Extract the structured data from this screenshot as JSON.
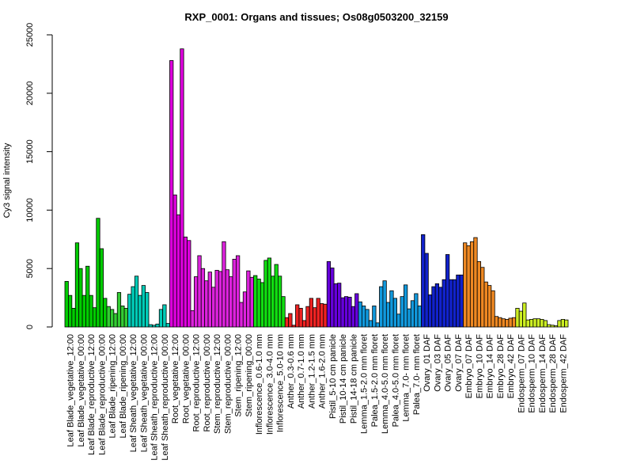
{
  "chart_data": {
    "type": "bar",
    "title": "RXP_0001: Organs and tissues; Os08g0503200_32159",
    "xlabel": "",
    "ylabel": "Cy3 signal intensity",
    "ylim": [
      0,
      25000
    ],
    "yticks": [
      0,
      5000,
      10000,
      15000,
      20000,
      25000
    ],
    "grid": false,
    "legend": "none",
    "categories": [
      "Leaf Blade_vegetative_12:00",
      "Leaf Blade_vegetative_00:00",
      "Leaf Blade_reproductive_12:00",
      "Leaf Blade_reproductive_00:00",
      "Leaf Blade_ripening_12:00",
      "Leaf Blade_ripening_00:00",
      "Leaf Sheath_vegetative_12:00",
      "Leaf Sheath_vegetative_00:00",
      "Leaf Sheath_reproductive_12:00",
      "Leaf Sheath_reproductive_00:00",
      "Root_vegetative_12:00",
      "Root_vegetative_00:00",
      "Root_reproductive_12:00",
      "Root_reproductive_00:00",
      "Stem_reproductive_12:00",
      "Stem_reproductive_00:00",
      "Stem_ripening_12:00",
      "Stem_ripening_00:00",
      "Inflorescence_0.6-1.0 mm",
      "Inflorescence_3.0-4.0 mm",
      "Inflorescence_5.0-10 mm",
      "Anther_0.3-0.6 mm",
      "Anther_0.7-1.0 mm",
      "Anther_1.2-1.5 mm",
      "Anther_1.6-2.0 mm",
      "Pistil_5-10 cm panicle",
      "Pistil_10-14 cm panicle",
      "Pistil_14-18 cm panicle",
      "Lemma_1.5-2.0 mm floret",
      "Palea_1.5-2.0 mm floret",
      "Lemma_4.0-5.0 mm floret",
      "Palea_4.0-5.0 mm floret",
      "Lemma_7.0- mm floret",
      "Palea_7.0- mm floret",
      "Ovary_01 DAF",
      "Ovary_03 DAF",
      "Ovary_05 DAF",
      "Ovary_07 DAF",
      "Embryo_07 DAF",
      "Embryo_10 DAF",
      "Embryo_14 DAF",
      "Embryo_28 DAF",
      "Embryo_42 DAF",
      "Endosperm_07 DAF",
      "Endosperm_10 DAF",
      "Endosperm_14 DAF",
      "Endosperm_28 DAF",
      "Endosperm_42 DAF"
    ],
    "groups": [
      {
        "color": "#00cc00",
        "values": [
          3900,
          2700,
          1600
        ]
      },
      {
        "color": "#00cc00",
        "values": [
          7200,
          5000,
          2700
        ]
      },
      {
        "color": "#00cc00",
        "values": [
          5200,
          2700,
          1650
        ]
      },
      {
        "color": "#00cc00",
        "values": [
          9300,
          6700,
          2450
        ]
      },
      {
        "color": "#33cc33",
        "values": [
          1750,
          1500,
          1150
        ]
      },
      {
        "color": "#33cc33",
        "values": [
          2950,
          1800,
          1600
        ]
      },
      {
        "color": "#00ccb8",
        "values": [
          2800,
          3450,
          4350
        ]
      },
      {
        "color": "#00ccb8",
        "values": [
          2700,
          3550,
          2950
        ]
      },
      {
        "color": "#00ccb8",
        "values": [
          200,
          150,
          250
        ]
      },
      {
        "color": "#00ccb8",
        "values": [
          1500,
          1900,
          300
        ]
      },
      {
        "color": "#dd00dd",
        "values": [
          22800,
          11300,
          9600
        ]
      },
      {
        "color": "#dd00dd",
        "values": [
          23800,
          7700,
          7400
        ]
      },
      {
        "color": "#dd22dd",
        "values": [
          1400,
          4300,
          6100
        ]
      },
      {
        "color": "#dd22dd",
        "values": [
          5000,
          3950,
          4700
        ]
      },
      {
        "color": "#dd22dd",
        "values": [
          3400,
          4850,
          4750
        ]
      },
      {
        "color": "#dd22dd",
        "values": [
          7300,
          4900,
          4300
        ]
      },
      {
        "color": "#dd22dd",
        "values": [
          5800,
          6100,
          2100
        ]
      },
      {
        "color": "#dd22dd",
        "values": [
          3000,
          4800,
          4250
        ]
      },
      {
        "color": "#11dd11",
        "values": [
          4400,
          4100,
          3800
        ]
      },
      {
        "color": "#11dd11",
        "values": [
          5700,
          5900,
          4350
        ]
      },
      {
        "color": "#11dd11",
        "values": [
          5350,
          4350,
          2600
        ]
      },
      {
        "color": "#ee2222",
        "values": [
          800,
          1150,
          150
        ]
      },
      {
        "color": "#ee2222",
        "values": [
          1900,
          1600,
          550
        ]
      },
      {
        "color": "#ee2222",
        "values": [
          1750,
          2450,
          1650
        ]
      },
      {
        "color": "#ee2222",
        "values": [
          2450,
          2000,
          1950
        ]
      },
      {
        "color": "#6600dd",
        "values": [
          5600,
          5050,
          3700
        ]
      },
      {
        "color": "#6600dd",
        "values": [
          3750,
          2500,
          2600
        ]
      },
      {
        "color": "#6600dd",
        "values": [
          2550,
          1750,
          2850
        ]
      },
      {
        "color": "#1199dd",
        "values": [
          2150,
          1800,
          1500
        ]
      },
      {
        "color": "#1199dd",
        "values": [
          550,
          1800,
          350
        ]
      },
      {
        "color": "#1199dd",
        "values": [
          3450,
          3950,
          2100
        ]
      },
      {
        "color": "#1199dd",
        "values": [
          3100,
          2450,
          1100
        ]
      },
      {
        "color": "#1199dd",
        "values": [
          2600,
          3600,
          1550
        ]
      },
      {
        "color": "#1199dd",
        "values": [
          2250,
          2850,
          1800
        ]
      },
      {
        "color": "#1122cc",
        "values": [
          7900,
          6300,
          2750
        ]
      },
      {
        "color": "#1122cc",
        "values": [
          3450,
          3700,
          3400
        ]
      },
      {
        "color": "#1122cc",
        "values": [
          4050,
          6200,
          4050
        ]
      },
      {
        "color": "#1122cc",
        "values": [
          4050,
          4450,
          4450
        ]
      },
      {
        "color": "#ee8822",
        "values": [
          7200,
          6950,
          7300
        ]
      },
      {
        "color": "#ee8822",
        "values": [
          7650,
          5600,
          5100
        ]
      },
      {
        "color": "#ee8822",
        "values": [
          3850,
          3550,
          3100
        ]
      },
      {
        "color": "#ee8822",
        "values": [
          900,
          800,
          700
        ]
      },
      {
        "color": "#ee8822",
        "values": [
          650,
          750,
          800
        ]
      },
      {
        "color": "#ccee22",
        "values": [
          1600,
          1350,
          2050
        ]
      },
      {
        "color": "#ccee22",
        "values": [
          600,
          650,
          700
        ]
      },
      {
        "color": "#ccee22",
        "values": [
          700,
          650,
          550
        ]
      },
      {
        "color": "#ccee22",
        "values": [
          200,
          150,
          100
        ]
      },
      {
        "color": "#ccee22",
        "values": [
          550,
          650,
          600
        ]
      }
    ]
  }
}
